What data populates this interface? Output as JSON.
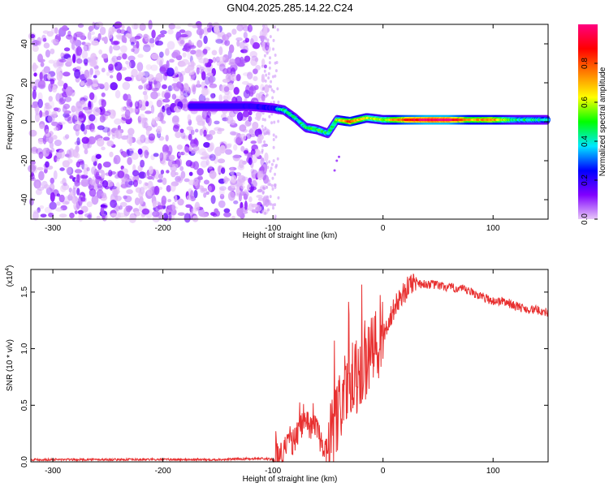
{
  "title": "GN04.2025.285.14.22.C24",
  "chart_data": [
    {
      "type": "heatmap",
      "name": "spectrogram",
      "xlabel": "Height of straight line (km)",
      "ylabel": "Frequency (Hz)",
      "xlim": [
        -320,
        150
      ],
      "ylim": [
        -50,
        50
      ],
      "xticks": [
        -300,
        -200,
        -100,
        0,
        100
      ],
      "yticks": [
        -40,
        -20,
        0,
        20,
        40
      ],
      "colorbar": {
        "label": "Normalized spectral amplitude",
        "range": [
          0.0,
          1.0
        ],
        "ticks": [
          0.0,
          0.2,
          0.4,
          0.6,
          0.8
        ],
        "tick_labels": [
          "0.0",
          "0.2",
          "0.4",
          "0.6",
          "0.8"
        ],
        "colors": [
          "#e8c8f8",
          "#8000ff",
          "#0000ff",
          "#00e8ff",
          "#00ff00",
          "#ffff00",
          "#ff8000",
          "#ff0000",
          "#ff0080"
        ]
      },
      "noise_region_km": [
        -320,
        -105
      ],
      "signal_track": [
        {
          "x": -175,
          "freq": 8,
          "amp": 0.15
        },
        {
          "x": -140,
          "freq": 8,
          "amp": 0.2
        },
        {
          "x": -120,
          "freq": 8,
          "amp": 0.25
        },
        {
          "x": -100,
          "freq": 7,
          "amp": 0.3
        },
        {
          "x": -90,
          "freq": 6,
          "amp": 0.45
        },
        {
          "x": -80,
          "freq": 2,
          "amp": 0.4
        },
        {
          "x": -70,
          "freq": -3,
          "amp": 0.45
        },
        {
          "x": -60,
          "freq": -4,
          "amp": 0.5
        },
        {
          "x": -50,
          "freq": -6,
          "amp": 0.45
        },
        {
          "x": -42,
          "freq": 1,
          "amp": 0.5
        },
        {
          "x": -30,
          "freq": 0,
          "amp": 0.8
        },
        {
          "x": -15,
          "freq": 2,
          "amp": 0.6
        },
        {
          "x": 0,
          "freq": 1,
          "amp": 0.55
        },
        {
          "x": 20,
          "freq": 1,
          "amp": 0.85
        },
        {
          "x": 40,
          "freq": 1,
          "amp": 1.0
        },
        {
          "x": 60,
          "freq": 1,
          "amp": 1.0
        },
        {
          "x": 80,
          "freq": 1,
          "amp": 0.7
        },
        {
          "x": 100,
          "freq": 1,
          "amp": 0.75
        },
        {
          "x": 120,
          "freq": 1,
          "amp": 0.45
        },
        {
          "x": 150,
          "freq": 1,
          "amp": 0.4
        }
      ]
    },
    {
      "type": "line",
      "name": "snr",
      "xlabel": "Height of straight line (km)",
      "ylabel": "SNR (10 * v/v)",
      "ylabel_multiplier": "(x10",
      "ylabel_exponent": "4",
      "xlim": [
        -320,
        150
      ],
      "ylim": [
        0.0,
        1.7
      ],
      "xticks": [
        -300,
        -200,
        -100,
        0,
        100
      ],
      "yticks": [
        0.0,
        0.5,
        1.0,
        1.5
      ],
      "ytick_labels": [
        "0.0",
        "0.5",
        "1.0",
        "1.5"
      ],
      "line_color": "#e83030",
      "series": [
        {
          "name": "SNR",
          "x": [
            -320,
            -250,
            -150,
            -110,
            -100,
            -95,
            -90,
            -85,
            -80,
            -75,
            -70,
            -65,
            -60,
            -55,
            -50,
            -45,
            -40,
            -35,
            -30,
            -25,
            -20,
            -15,
            -10,
            -5,
            0,
            5,
            10,
            15,
            20,
            25,
            30,
            35,
            40,
            50,
            60,
            70,
            80,
            90,
            100,
            110,
            120,
            130,
            140,
            150
          ],
          "y": [
            0.02,
            0.02,
            0.02,
            0.03,
            0.02,
            0.05,
            0.1,
            0.15,
            0.2,
            0.3,
            0.4,
            0.28,
            0.32,
            0.12,
            0.1,
            0.3,
            0.45,
            0.6,
            0.7,
            0.75,
            0.8,
            0.85,
            0.95,
            1.0,
            1.1,
            1.25,
            1.35,
            1.45,
            1.5,
            1.58,
            1.6,
            1.57,
            1.57,
            1.56,
            1.54,
            1.53,
            1.5,
            1.46,
            1.42,
            1.42,
            1.38,
            1.35,
            1.34,
            1.32
          ]
        }
      ],
      "noise_amplitude": [
        {
          "x_from": -320,
          "x_to": -100,
          "amp": 0.01
        },
        {
          "x_from": -100,
          "x_to": -50,
          "amp": 0.12
        },
        {
          "x_from": -50,
          "x_to": 0,
          "amp": 0.35
        },
        {
          "x_from": 0,
          "x_to": 30,
          "amp": 0.1
        },
        {
          "x_from": 30,
          "x_to": 150,
          "amp": 0.04
        }
      ]
    }
  ]
}
